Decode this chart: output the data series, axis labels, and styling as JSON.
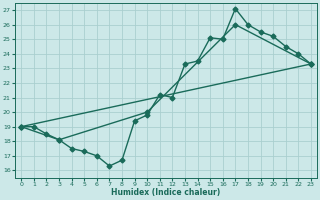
{
  "xlabel": "Humidex (Indice chaleur)",
  "xlim": [
    -0.5,
    23.5
  ],
  "ylim": [
    15.5,
    27.5
  ],
  "xticks": [
    0,
    1,
    2,
    3,
    4,
    5,
    6,
    7,
    8,
    9,
    10,
    11,
    12,
    13,
    14,
    15,
    16,
    17,
    18,
    19,
    20,
    21,
    22,
    23
  ],
  "yticks": [
    16,
    17,
    18,
    19,
    20,
    21,
    22,
    23,
    24,
    25,
    26,
    27
  ],
  "background_color": "#cce8e8",
  "grid_color": "#aacfcf",
  "line_color": "#1a6b5a",
  "line1_x": [
    0,
    1,
    2,
    3,
    4,
    5,
    6,
    7,
    8,
    9,
    10,
    11,
    12,
    13,
    14,
    15,
    16,
    17,
    18,
    19,
    20,
    21,
    22,
    23
  ],
  "line1_y": [
    19.0,
    19.0,
    18.5,
    18.1,
    17.5,
    17.3,
    17.0,
    16.3,
    16.7,
    19.4,
    19.8,
    21.2,
    21.0,
    23.3,
    23.5,
    25.1,
    25.0,
    27.1,
    26.0,
    25.5,
    25.2,
    24.5,
    24.0,
    23.3
  ],
  "line2_x": [
    0,
    3,
    10,
    17,
    23
  ],
  "line2_y": [
    19.0,
    18.1,
    20.0,
    26.0,
    23.3
  ],
  "line3_x": [
    0,
    23
  ],
  "line3_y": [
    19.0,
    23.3
  ],
  "marker": "D",
  "marker_size": 2.5,
  "line_width": 1.0
}
